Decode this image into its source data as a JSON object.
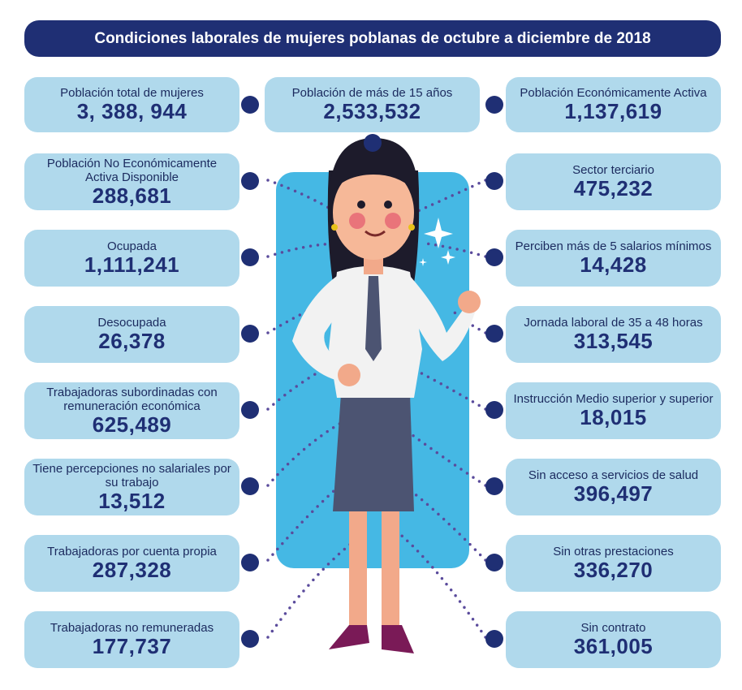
{
  "title": "Condiciones laborales de mujeres poblanas de octubre a diciembre de 2018",
  "colors": {
    "navy": "#1f2f74",
    "card": "#b0d9ec",
    "panel": "#45b8e4"
  },
  "stats": [
    {
      "label": "Población total de mujeres",
      "value": "3, 388, 944"
    },
    {
      "label": "Población de más de 15 años",
      "value": "2,533,532"
    },
    {
      "label": "Población Económicamente Activa",
      "value": "1,137,619"
    },
    {
      "label": "Población No Económicamente Activa Disponible",
      "value": "288,681"
    },
    {
      "label": "Ocupada",
      "value": "1,111,241"
    },
    {
      "label": "Desocupada",
      "value": "26,378"
    },
    {
      "label": "Trabajadoras subordinadas con remuneración económica",
      "value": "625,489"
    },
    {
      "label": "Tiene percepciones no salariales por su trabajo",
      "value": "13,512"
    },
    {
      "label": "Trabajadoras por cuenta propia",
      "value": "287,328"
    },
    {
      "label": "Trabajadoras no remuneradas",
      "value": "177,737"
    },
    {
      "label": "Sector terciario",
      "value": "475,232"
    },
    {
      "label": "Perciben más de 5 salarios mínimos",
      "value": "14,428"
    },
    {
      "label": "Jornada laboral de 35 a 48 horas",
      "value": "313,545"
    },
    {
      "label": "Instrucción Medio superior y superior",
      "value": "18,015"
    },
    {
      "label": "Sin acceso a servicios de salud",
      "value": "396,497"
    },
    {
      "label": "Sin otras prestaciones",
      "value": "336,270"
    },
    {
      "label": "Sin contrato",
      "value": "361,005"
    }
  ]
}
